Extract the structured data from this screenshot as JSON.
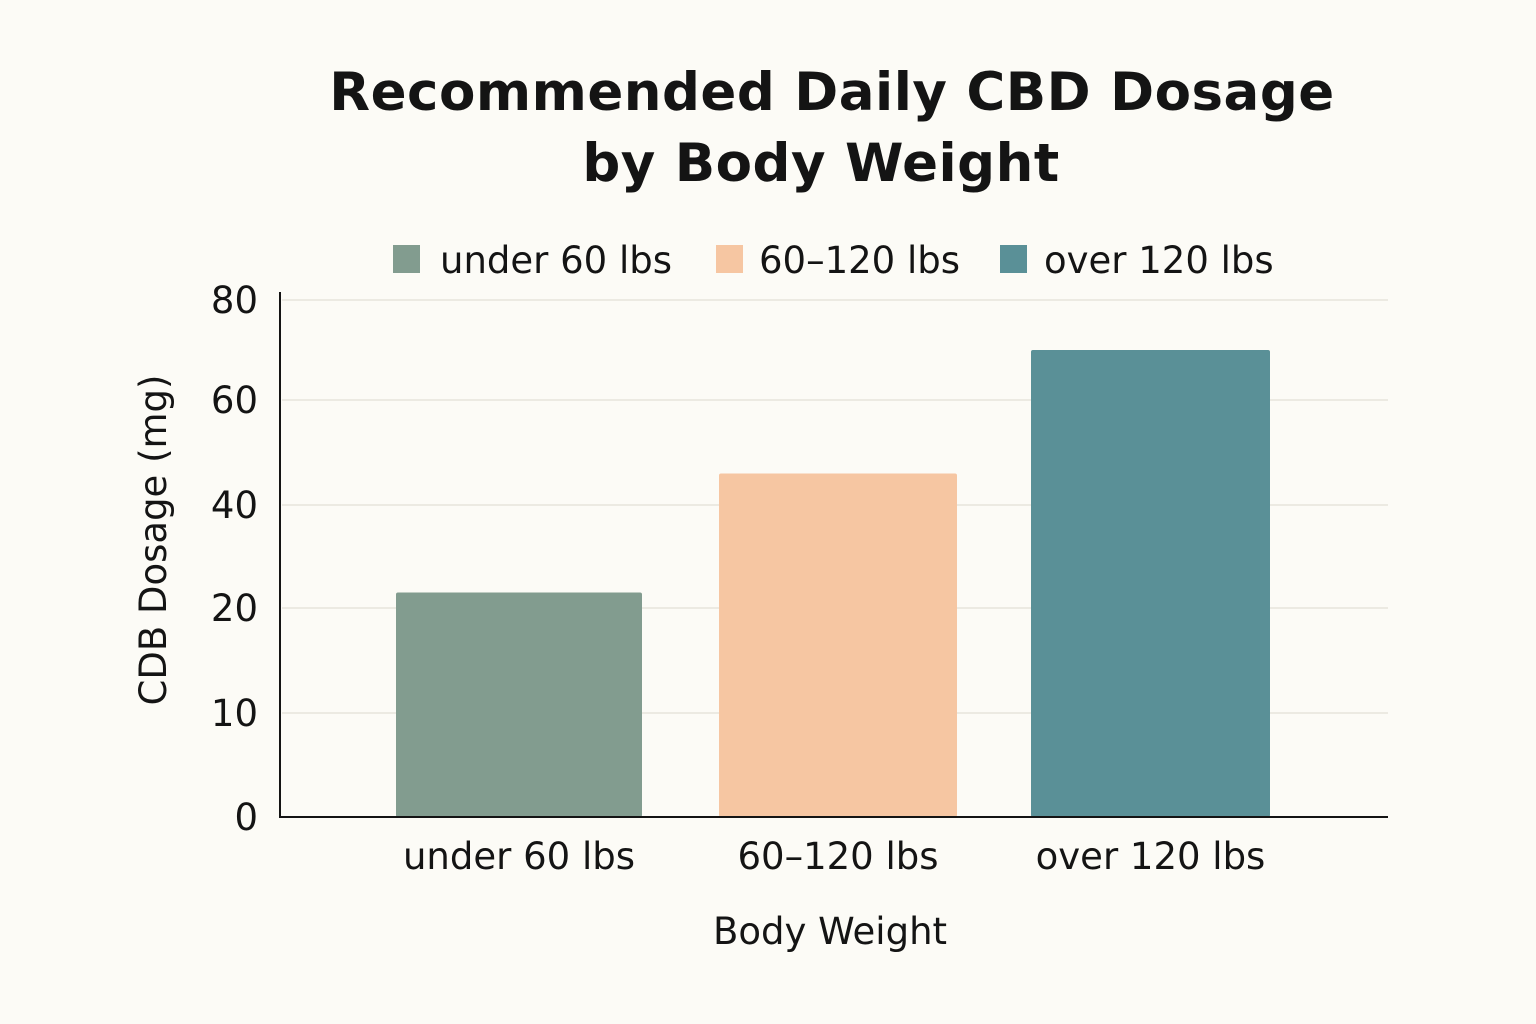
{
  "chart_data": {
    "type": "bar",
    "title_lines": [
      "Recommended Daily CBD Dosage",
      "by Body Weight"
    ],
    "xlabel": "Body Weight",
    "ylabel": "CDB Dosage (mg)",
    "categories": [
      "under 60 lbs",
      "60–120 lbs",
      "over 120 lbs"
    ],
    "values": [
      23,
      46,
      70
    ],
    "colors": [
      "#829c8f",
      "#f6c6a2",
      "#5a9097"
    ],
    "yticks": [
      {
        "label": "0",
        "value": 0
      },
      {
        "label": "10",
        "value": 10
      },
      {
        "label": "20",
        "value": 20
      },
      {
        "label": "40",
        "value": 40
      },
      {
        "label": "60",
        "value": 60
      },
      {
        "label": "80",
        "value": 80
      }
    ],
    "legend": {
      "placement": "top",
      "entries": [
        "under 60 lbs",
        "60–120 lbs",
        "over 120 lbs"
      ]
    },
    "grid": true
  }
}
